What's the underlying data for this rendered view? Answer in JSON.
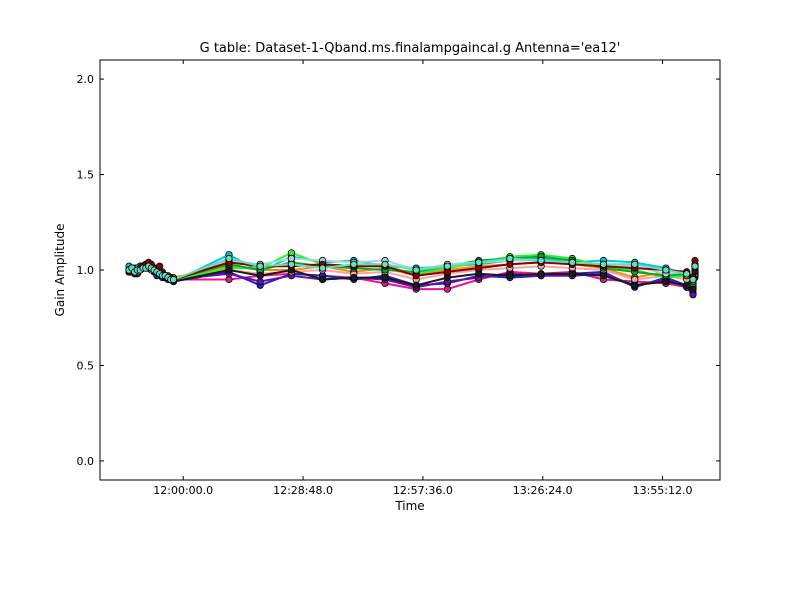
{
  "chart_data": {
    "type": "line",
    "title": "G table: Dataset-1-Qband.ms.finalampgaincal.g      Antenna='ea12'",
    "xlabel": "Time",
    "ylabel": "Gain Amplitude",
    "xlim": [
      "11:40:00",
      "14:09:00"
    ],
    "ylim": [
      -0.1,
      2.1
    ],
    "xticks": [
      "12:00:00.0",
      "12:28:48.0",
      "12:57:36.0",
      "13:26:24.0",
      "13:55:12.0"
    ],
    "yticks": [
      "0.0",
      "0.5",
      "1.0",
      "1.5",
      "2.0"
    ],
    "grid": false,
    "x": [
      "11:47:00",
      "11:47:40",
      "11:48:20",
      "11:49:00",
      "11:49:40",
      "11:50:20",
      "11:51:00",
      "11:51:40",
      "11:52:20",
      "11:53:00",
      "11:53:40",
      "11:54:20",
      "11:55:00",
      "11:55:40",
      "11:56:20",
      "11:57:00",
      "11:57:40",
      "12:11:00",
      "12:18:30",
      "12:26:00",
      "12:33:30",
      "12:41:00",
      "12:48:30",
      "12:56:00",
      "13:03:30",
      "13:11:00",
      "13:18:30",
      "13:26:00",
      "13:33:30",
      "13:41:00",
      "13:48:30",
      "13:56:00",
      "14:01:00",
      "14:02:30",
      "14:03:00"
    ],
    "series": [
      {
        "color": "#e8168c",
        "values": [
          1.0,
          0.99,
          0.99,
          0.98,
          1.0,
          1.01,
          1.02,
          1.02,
          1.01,
          1.0,
          0.99,
          0.98,
          0.99,
          0.97,
          0.97,
          0.96,
          0.95,
          0.95,
          0.97,
          0.98,
          0.97,
          0.96,
          0.93,
          0.9,
          0.9,
          0.95,
          0.99,
          0.98,
          0.99,
          0.95,
          0.94,
          0.93,
          0.91,
          0.9,
          0.96
        ]
      },
      {
        "color": "#1d23c8",
        "values": [
          0.99,
          1.0,
          0.98,
          0.99,
          1.01,
          1.02,
          1.01,
          1.03,
          1.0,
          0.99,
          0.97,
          0.98,
          0.96,
          0.97,
          0.95,
          0.96,
          0.94,
          0.99,
          0.92,
          0.98,
          0.97,
          0.95,
          0.97,
          0.92,
          0.93,
          0.97,
          0.96,
          0.97,
          0.98,
          0.99,
          0.91,
          0.96,
          0.92,
          0.88,
          0.98
        ]
      },
      {
        "color": "#6a0dad",
        "values": [
          1.01,
          1.0,
          1.0,
          0.99,
          1.02,
          1.01,
          1.03,
          1.02,
          1.02,
          1.01,
          0.99,
          0.99,
          0.97,
          0.96,
          0.96,
          0.95,
          0.95,
          0.98,
          0.94,
          0.97,
          0.95,
          0.96,
          0.95,
          0.91,
          0.94,
          0.96,
          0.98,
          0.97,
          0.97,
          0.98,
          0.92,
          0.95,
          0.91,
          0.87,
          0.97
        ]
      },
      {
        "color": "#ff8c00",
        "values": [
          1.0,
          0.99,
          1.0,
          1.0,
          1.01,
          1.02,
          1.03,
          1.02,
          1.01,
          1.01,
          1.0,
          0.99,
          0.98,
          0.97,
          0.96,
          0.95,
          0.96,
          1.02,
          1.0,
          1.0,
          1.02,
          0.99,
          1.01,
          0.97,
          1.0,
          1.02,
          1.03,
          1.04,
          1.03,
          1.01,
          0.96,
          0.99,
          0.96,
          0.92,
          1.0
        ]
      },
      {
        "color": "#f4a6a6",
        "values": [
          0.99,
          1.0,
          0.99,
          1.01,
          1.0,
          1.01,
          1.02,
          1.01,
          1.0,
          1.0,
          0.99,
          0.98,
          0.98,
          0.97,
          0.96,
          0.95,
          0.95,
          1.0,
          0.98,
          0.99,
          1.0,
          0.98,
          0.99,
          0.95,
          0.98,
          1.0,
          1.01,
          1.02,
          1.01,
          1.0,
          0.95,
          0.97,
          0.95,
          0.91,
          0.98
        ]
      },
      {
        "color": "#00c8d8",
        "values": [
          1.02,
          1.01,
          1.0,
          1.01,
          1.02,
          1.01,
          1.02,
          1.03,
          1.02,
          1.01,
          1.0,
          0.99,
          0.98,
          0.97,
          0.96,
          0.95,
          0.94,
          1.08,
          0.99,
          1.07,
          1.04,
          1.05,
          1.02,
          1.01,
          1.02,
          1.03,
          1.05,
          1.06,
          1.04,
          1.05,
          1.04,
          1.01,
          0.98,
          0.96,
          1.03
        ]
      },
      {
        "color": "#33ee33",
        "values": [
          1.0,
          1.01,
          1.0,
          0.99,
          1.01,
          1.02,
          1.03,
          1.02,
          1.01,
          1.0,
          0.99,
          0.99,
          0.98,
          0.97,
          0.96,
          0.95,
          0.95,
          1.01,
          1.01,
          1.09,
          1.03,
          1.02,
          1.02,
          0.98,
          1.01,
          1.04,
          1.07,
          1.08,
          1.06,
          1.02,
          1.0,
          0.96,
          0.97,
          0.93,
          1.01
        ]
      },
      {
        "color": "#00aa33",
        "values": [
          1.0,
          0.99,
          1.01,
          1.0,
          1.0,
          1.01,
          1.02,
          1.02,
          1.01,
          1.0,
          0.99,
          0.98,
          0.98,
          0.97,
          0.96,
          0.95,
          0.95,
          1.03,
          1.0,
          1.04,
          1.02,
          1.01,
          1.0,
          0.99,
          1.02,
          1.05,
          1.06,
          1.07,
          1.05,
          1.01,
          0.99,
          0.97,
          0.98,
          0.94,
          1.02
        ]
      },
      {
        "color": "#aad4d8",
        "values": [
          0.99,
          1.0,
          1.0,
          1.01,
          1.01,
          1.02,
          1.01,
          1.02,
          1.0,
          1.0,
          0.99,
          0.98,
          0.97,
          0.97,
          0.96,
          0.96,
          0.95,
          1.05,
          1.03,
          1.06,
          1.05,
          1.04,
          1.05,
          1.0,
          1.03,
          1.04,
          1.05,
          1.05,
          1.03,
          1.03,
          1.02,
          0.98,
          0.99,
          0.95,
          1.02
        ]
      },
      {
        "color": "#1a1a1a",
        "values": [
          1.0,
          1.0,
          0.99,
          1.0,
          1.01,
          1.02,
          1.02,
          1.01,
          1.01,
          1.0,
          0.99,
          0.98,
          0.98,
          0.96,
          0.96,
          0.95,
          0.94,
          1.0,
          0.97,
          1.0,
          0.95,
          0.96,
          0.96,
          0.92,
          0.96,
          0.98,
          0.97,
          0.98,
          0.98,
          0.97,
          0.92,
          0.94,
          0.92,
          0.9,
          0.99
        ]
      },
      {
        "color": "#8b0000",
        "values": [
          0.99,
          1.0,
          1.0,
          1.0,
          1.01,
          1.02,
          1.03,
          1.04,
          1.03,
          1.01,
          1.0,
          1.02,
          0.98,
          0.97,
          0.96,
          0.96,
          0.95,
          1.04,
          1.02,
          1.02,
          1.03,
          1.02,
          1.02,
          0.97,
          0.99,
          1.01,
          1.03,
          1.04,
          1.03,
          1.02,
          1.01,
          1.0,
          0.99,
          0.96,
          1.05
        ]
      },
      {
        "color": "#66ddbb",
        "values": [
          1.0,
          1.01,
          0.99,
          1.0,
          1.0,
          1.01,
          1.01,
          1.02,
          1.01,
          1.0,
          0.99,
          0.98,
          0.97,
          0.97,
          0.96,
          0.95,
          0.95,
          1.06,
          1.02,
          1.03,
          1.01,
          1.03,
          1.03,
          1.0,
          1.02,
          1.04,
          1.06,
          1.05,
          1.04,
          1.03,
          1.03,
          1.0,
          0.98,
          0.95,
          1.02
        ]
      }
    ]
  }
}
